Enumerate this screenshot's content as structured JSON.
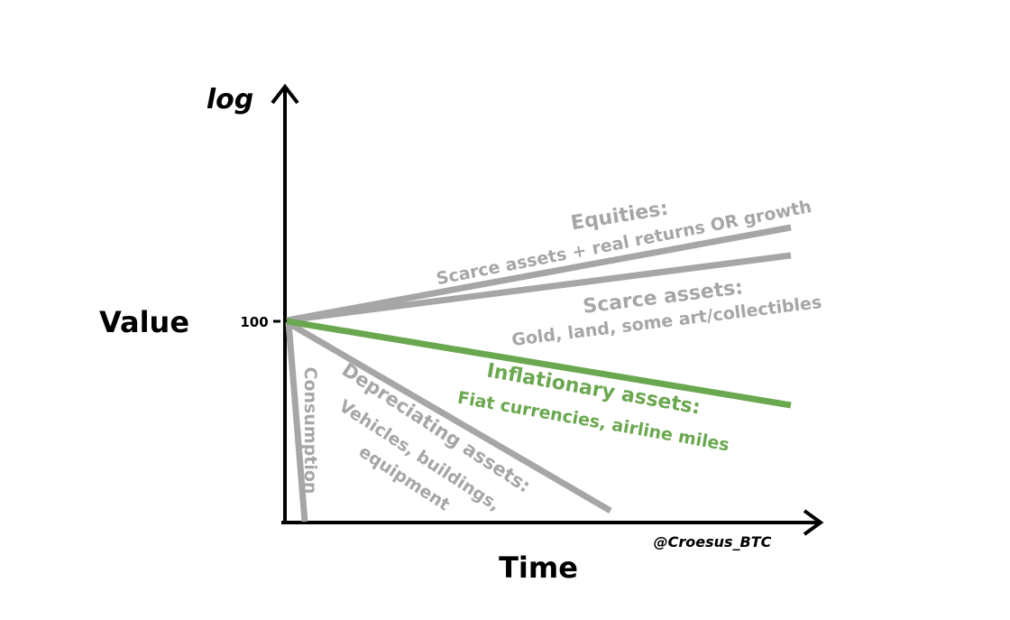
{
  "axes": {
    "y_scale_label": "log",
    "y_label": "Value",
    "x_label": "Time",
    "y_tick": "100",
    "credit": "@Croesus_BTC"
  },
  "colors": {
    "gray": "#a6a6a6",
    "green": "#6aa84f",
    "axis": "#000000"
  },
  "lines": {
    "equities": {
      "title": "Equities:",
      "subtitle": "Scarce assets + real returns OR growth"
    },
    "scarce": {
      "title": "Scarce assets:",
      "subtitle": "Gold, land, some art/collectibles"
    },
    "inflationary": {
      "title": "Inflationary assets:",
      "subtitle": "Fiat currencies, airline miles"
    },
    "depreciating": {
      "title": "Depreciating assets:",
      "subtitle": "Vehicles, buildings,",
      "subtitle2": "equipment"
    },
    "consumption": {
      "title": "Consumption"
    }
  }
}
